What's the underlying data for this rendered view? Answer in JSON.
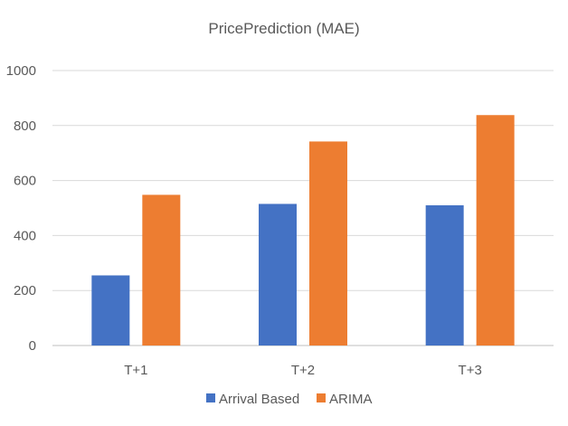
{
  "chart_data": {
    "type": "bar",
    "title": "PricePrediction (MAE)",
    "xlabel": "",
    "ylabel": "",
    "categories": [
      "T+1",
      "T+2",
      "T+3"
    ],
    "series": [
      {
        "name": "Arrival Based",
        "color": "#4472C4",
        "values": [
          255,
          515,
          510
        ]
      },
      {
        "name": "ARIMA",
        "color": "#ED7D31",
        "values": [
          548,
          742,
          838
        ]
      }
    ],
    "ylim": [
      0,
      1000
    ],
    "yticks": [
      0,
      200,
      400,
      600,
      800,
      1000
    ],
    "grid": true,
    "legend": "bottom"
  }
}
